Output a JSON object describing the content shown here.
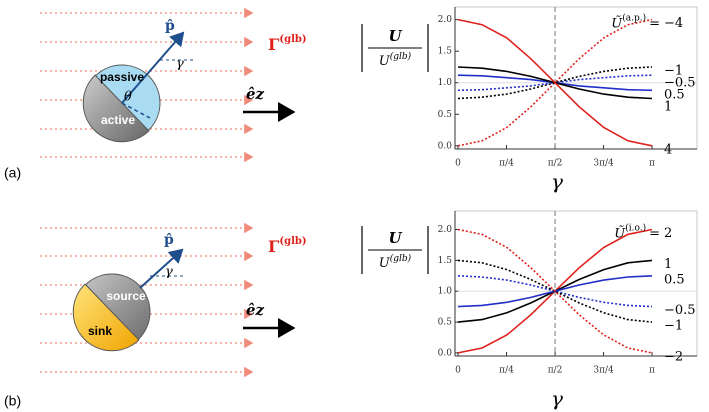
{
  "panels": [
    {
      "label": "(a)",
      "diagram": {
        "top_half": "passive",
        "bottom_half": "active",
        "orientation": "p̂",
        "angle": "γ",
        "angle2": "θ",
        "field": "Γ",
        "field_sup": "(glb)",
        "direction": "êz"
      }
    },
    {
      "label": "(b)",
      "diagram": {
        "top_half": "source",
        "bottom_half": "sink",
        "orientation": "p̂",
        "angle": "γ",
        "field": "Γ",
        "field_sup": "(glb)",
        "direction": "êz"
      }
    }
  ],
  "chart_data": [
    {
      "type": "line",
      "ylabel_num": "U",
      "ylabel_den": "U",
      "ylabel_den_sup": "(glb)",
      "xlabel": "γ",
      "legend_title": "Ũ",
      "legend_title_sup": "(a.p.)",
      "legend_eq": "=",
      "x": [
        0,
        0.39,
        0.79,
        1.18,
        1.57,
        1.96,
        2.36,
        2.75,
        3.14
      ],
      "xlim": [
        0,
        3.14
      ],
      "xticks": [
        0,
        {
          "value": 0.785,
          "label": "π/4"
        },
        {
          "value": 1.571,
          "label": "π/2"
        },
        {
          "value": 2.356,
          "label": "3π/4"
        },
        {
          "value": 3.14,
          "label": "π"
        }
      ],
      "ylim": [
        -0.05,
        2.2
      ],
      "yticks": [
        {
          "value": 0,
          "label": "0.0"
        },
        0.5,
        {
          "value": 1,
          "label": "1.0"
        },
        1.5,
        {
          "value": 2,
          "label": "2.0"
        }
      ],
      "series": [
        {
          "name": "−4",
          "color": "#e0201b",
          "dash": true,
          "values": [
            0,
            0.08,
            0.29,
            0.62,
            1,
            1.38,
            1.71,
            1.92,
            2
          ]
        },
        {
          "name": "−1",
          "color": "#000000",
          "dash": true,
          "values": [
            0.75,
            0.77,
            0.82,
            0.9,
            1,
            1.1,
            1.18,
            1.23,
            1.25
          ]
        },
        {
          "name": "−0.5",
          "color": "#1f2fc8",
          "dash": true,
          "values": [
            0.88,
            0.89,
            0.92,
            0.95,
            1,
            1.05,
            1.08,
            1.11,
            1.12
          ]
        },
        {
          "name": "0.5",
          "color": "#1f2fc8",
          "dash": false,
          "values": [
            1.12,
            1.11,
            1.08,
            1.05,
            1,
            0.95,
            0.92,
            0.89,
            0.88
          ]
        },
        {
          "name": "1",
          "color": "#000000",
          "dash": false,
          "values": [
            1.25,
            1.23,
            1.18,
            1.1,
            1,
            0.9,
            0.82,
            0.77,
            0.75
          ]
        },
        {
          "name": "4",
          "color": "#e0201b",
          "dash": false,
          "values": [
            2,
            1.92,
            1.71,
            1.38,
            1,
            0.62,
            0.29,
            0.08,
            0
          ]
        }
      ]
    },
    {
      "type": "line",
      "ylabel_num": "U",
      "ylabel_den": "U",
      "ylabel_den_sup": "(glb)",
      "xlabel": "γ",
      "legend_title": "Ũ",
      "legend_title_sup": "(i.o.)",
      "legend_eq": "=",
      "x": [
        0,
        0.39,
        0.79,
        1.18,
        1.57,
        1.96,
        2.36,
        2.75,
        3.14
      ],
      "xlim": [
        0,
        3.14
      ],
      "xticks": [
        0,
        {
          "value": 0.785,
          "label": "π/4"
        },
        {
          "value": 1.571,
          "label": "π/2"
        },
        {
          "value": 2.356,
          "label": "3π/4"
        },
        {
          "value": 3.14,
          "label": "π"
        }
      ],
      "ylim": [
        -0.05,
        2.3
      ],
      "yticks": [
        {
          "value": 0,
          "label": "0.0"
        },
        0.5,
        {
          "value": 1,
          "label": "1.0"
        },
        1.5,
        {
          "value": 2,
          "label": "2.0"
        }
      ],
      "series": [
        {
          "name": "2",
          "color": "#e0201b",
          "dash": false,
          "values": [
            0,
            0.08,
            0.29,
            0.62,
            1,
            1.38,
            1.71,
            1.92,
            2
          ]
        },
        {
          "name": "1",
          "color": "#000000",
          "dash": false,
          "values": [
            0.5,
            0.54,
            0.65,
            0.81,
            1,
            1.19,
            1.35,
            1.46,
            1.5
          ]
        },
        {
          "name": "0.5",
          "color": "#1f2fc8",
          "dash": false,
          "values": [
            0.75,
            0.77,
            0.82,
            0.9,
            1,
            1.1,
            1.18,
            1.23,
            1.25
          ]
        },
        {
          "name": "−0.5",
          "color": "#1f2fc8",
          "dash": true,
          "values": [
            1.25,
            1.23,
            1.18,
            1.1,
            1,
            0.9,
            0.82,
            0.77,
            0.75
          ]
        },
        {
          "name": "−1",
          "color": "#000000",
          "dash": true,
          "values": [
            1.5,
            1.46,
            1.35,
            1.19,
            1,
            0.81,
            0.65,
            0.54,
            0.5
          ]
        },
        {
          "name": "−2",
          "color": "#e0201b",
          "dash": true,
          "values": [
            2,
            1.92,
            1.71,
            1.38,
            1,
            0.62,
            0.29,
            0.08,
            0
          ]
        }
      ]
    }
  ]
}
